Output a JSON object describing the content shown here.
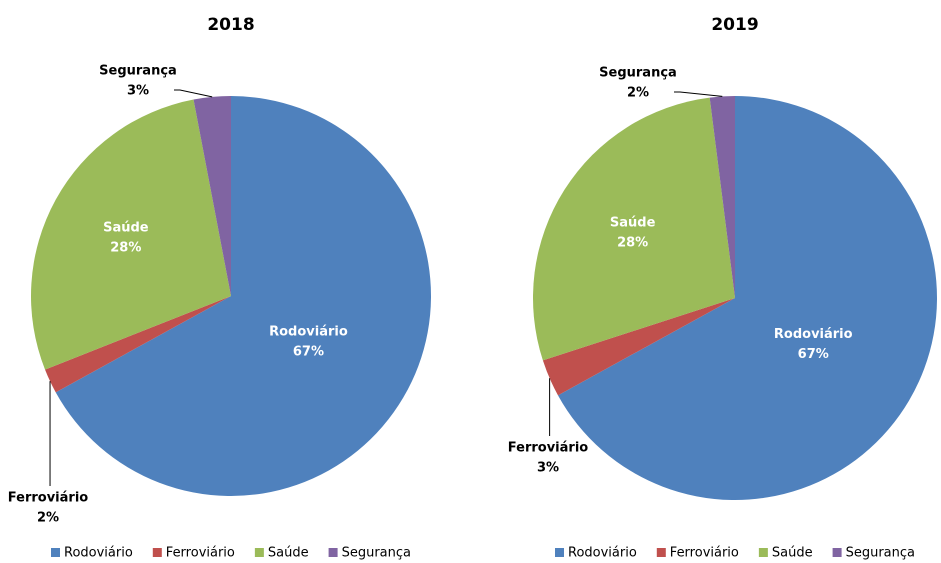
{
  "chart_data": [
    {
      "type": "pie",
      "title": "2018",
      "categories": [
        "Rodoviário",
        "Ferroviário",
        "Saúde",
        "Segurança"
      ],
      "values": [
        67,
        2,
        28,
        3
      ],
      "value_labels": [
        "67%",
        "2%",
        "28%",
        "3%"
      ],
      "colors": [
        "#4f81bd",
        "#c0504d",
        "#9bbb59",
        "#8064a2"
      ],
      "legend": "bottom"
    },
    {
      "type": "pie",
      "title": "2019",
      "categories": [
        "Rodoviário",
        "Ferroviário",
        "Saúde",
        "Segurança"
      ],
      "values": [
        67,
        3,
        28,
        2
      ],
      "value_labels": [
        "67%",
        "3%",
        "28%",
        "2%"
      ],
      "colors": [
        "#4f81bd",
        "#c0504d",
        "#9bbb59",
        "#8064a2"
      ],
      "legend": "bottom"
    }
  ]
}
